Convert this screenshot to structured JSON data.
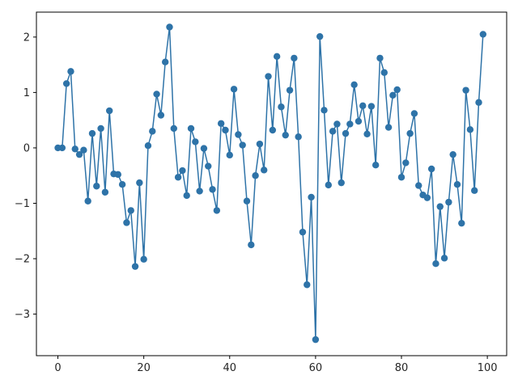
{
  "chart_data": {
    "type": "line",
    "title": "",
    "xlabel": "",
    "ylabel": "",
    "xlim": [
      -5,
      104.5
    ],
    "ylim": [
      -3.75,
      2.45
    ],
    "xticks": [
      0,
      20,
      40,
      60,
      80,
      100
    ],
    "yticks": [
      -3,
      -2,
      -1,
      0,
      1,
      2
    ],
    "xtick_labels": [
      "0",
      "20",
      "40",
      "60",
      "80",
      "100"
    ],
    "ytick_labels": [
      "−3",
      "−2",
      "−1",
      "0",
      "1",
      "2"
    ],
    "grid": false,
    "legend": "none",
    "color": "#2e73a8",
    "marker": "circle",
    "series": [
      {
        "x": [
          0,
          1,
          2,
          3,
          4,
          5,
          6,
          7,
          8,
          9,
          10,
          11,
          12,
          13,
          14,
          15,
          16,
          17,
          18,
          19,
          20,
          21,
          22,
          23,
          24,
          25,
          26,
          27,
          28,
          29,
          30,
          31,
          32,
          33,
          34,
          35,
          36,
          37,
          38,
          39,
          40,
          41,
          42,
          43,
          44,
          45,
          46,
          47,
          48,
          49,
          50,
          51,
          52,
          53,
          54,
          55,
          56,
          57,
          58,
          59,
          60,
          61,
          62,
          63,
          64,
          65,
          66,
          67,
          68,
          69,
          70,
          71,
          72,
          73,
          74,
          75,
          76,
          77,
          78,
          79,
          80,
          81,
          82,
          83,
          84,
          85,
          86,
          87,
          88,
          89,
          90,
          91,
          92,
          93,
          94,
          95,
          96,
          97,
          98,
          99
        ],
        "y": [
          0,
          0,
          1.16,
          1.38,
          -0.02,
          -0.12,
          -0.04,
          -0.96,
          0.26,
          -0.69,
          0.35,
          -0.8,
          0.67,
          -0.47,
          -0.48,
          -0.66,
          -1.35,
          -1.13,
          -2.14,
          -0.63,
          -2.01,
          0.04,
          0.3,
          0.97,
          0.59,
          1.55,
          2.18,
          0.35,
          -0.53,
          -0.41,
          -0.86,
          0.35,
          0.11,
          -0.78,
          -0.01,
          -0.33,
          -0.75,
          -1.13,
          0.44,
          0.32,
          -0.13,
          1.06,
          0.24,
          0.05,
          -0.96,
          -1.75,
          -0.5,
          0.07,
          -0.4,
          1.29,
          0.32,
          1.65,
          0.74,
          0.23,
          1.04,
          1.62,
          0.2,
          -1.52,
          -2.47,
          -0.89,
          -3.46,
          2.01,
          0.68,
          -0.67,
          0.3,
          0.43,
          -0.63,
          0.26,
          0.43,
          1.14,
          0.48,
          0.76,
          0.25,
          0.75,
          -0.31,
          1.62,
          1.36,
          0.37,
          0.95,
          1.05,
          -0.53,
          -0.27,
          0.26,
          0.62,
          -0.68,
          -0.85,
          -0.9,
          -0.38,
          -2.09,
          -1.06,
          -1.99,
          -0.98,
          -0.12,
          -0.66,
          -1.36,
          1.04,
          0.33,
          -0.77,
          0.82,
          2.05
        ]
      }
    ]
  }
}
